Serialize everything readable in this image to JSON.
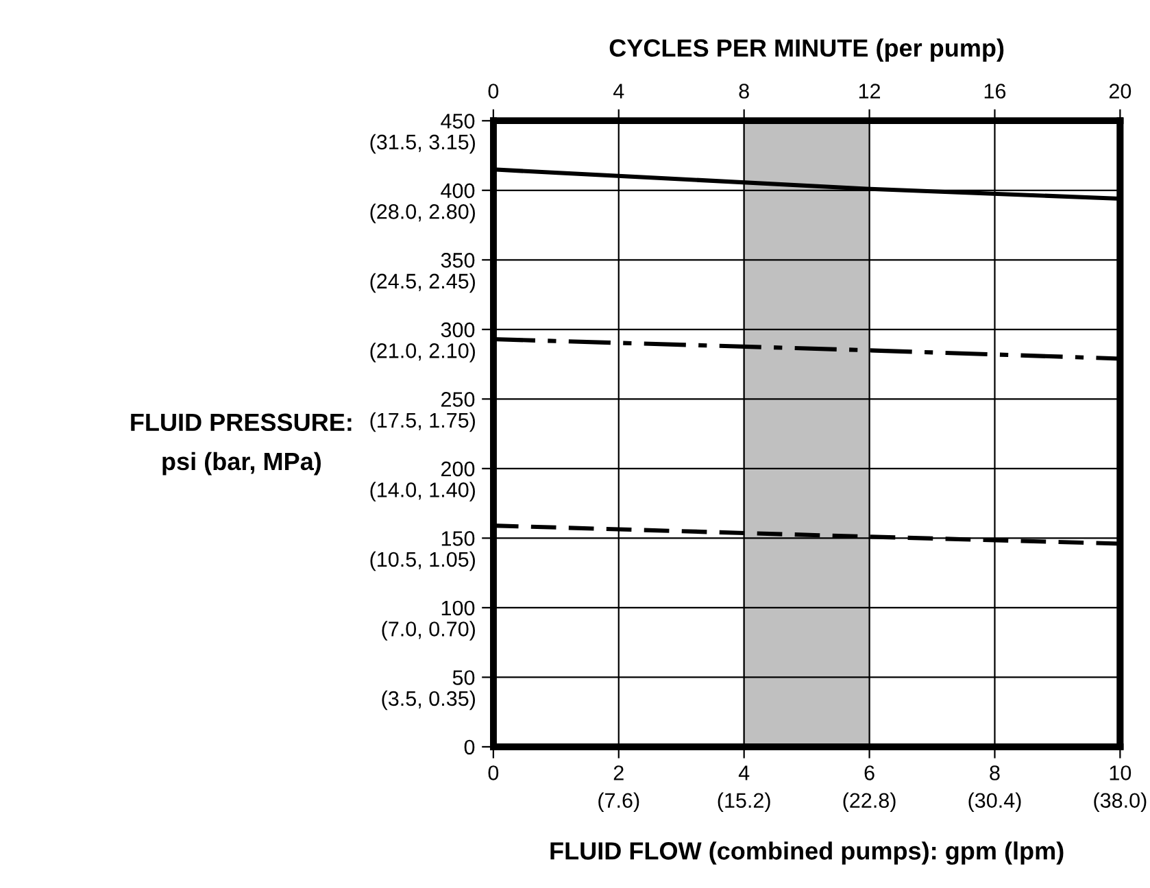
{
  "chart_data": {
    "type": "line",
    "x2label": "CYCLES PER MINUTE (per pump)",
    "xlabel": "FLUID FLOW (combined pumps): gpm (lpm)",
    "x": [
      0,
      6,
      10
    ],
    "series": [
      {
        "color": "#000000",
        "line_style": "solid",
        "values": [
          415,
          401,
          394
        ]
      },
      {
        "color": "#000000",
        "line_style": "dashdot",
        "values": [
          293,
          285,
          279
        ]
      },
      {
        "color": "#000000",
        "line_style": "dashed",
        "values": [
          159,
          151,
          146
        ]
      }
    ],
    "xlim": [
      0,
      10
    ],
    "xticks": [
      0,
      2,
      4,
      6,
      8,
      10
    ],
    "x2lim": [
      0,
      20
    ],
    "x2ticks": [
      0,
      4,
      8,
      12,
      16,
      20
    ],
    "ylim": [
      0,
      450
    ],
    "yticks": [
      0,
      50,
      100,
      150,
      200,
      250,
      300,
      350,
      400,
      450
    ],
    "annotations": [
      "(7.6)",
      "(15.2)",
      "(22.8)",
      "(30.4)",
      "(38.0)",
      "(3.5, 0.35)",
      "(7.0, 0.70)",
      "(10.5, 1.05)",
      "(14.0, 1.40)",
      "(17.5, 1.75)",
      "(21.0, 2.10)",
      "(24.5, 2.45)",
      "(28.0, 2.80)",
      "(31.5, 3.15)",
      "FLUID PRESSURE:\npsi (bar, MPa)"
    ],
    "bands": [
      {
        "axis": "x",
        "from": 4,
        "to": 6,
        "color": "#c0c0c0"
      }
    ],
    "grid": true,
    "legend": false,
    "marker": "none"
  }
}
